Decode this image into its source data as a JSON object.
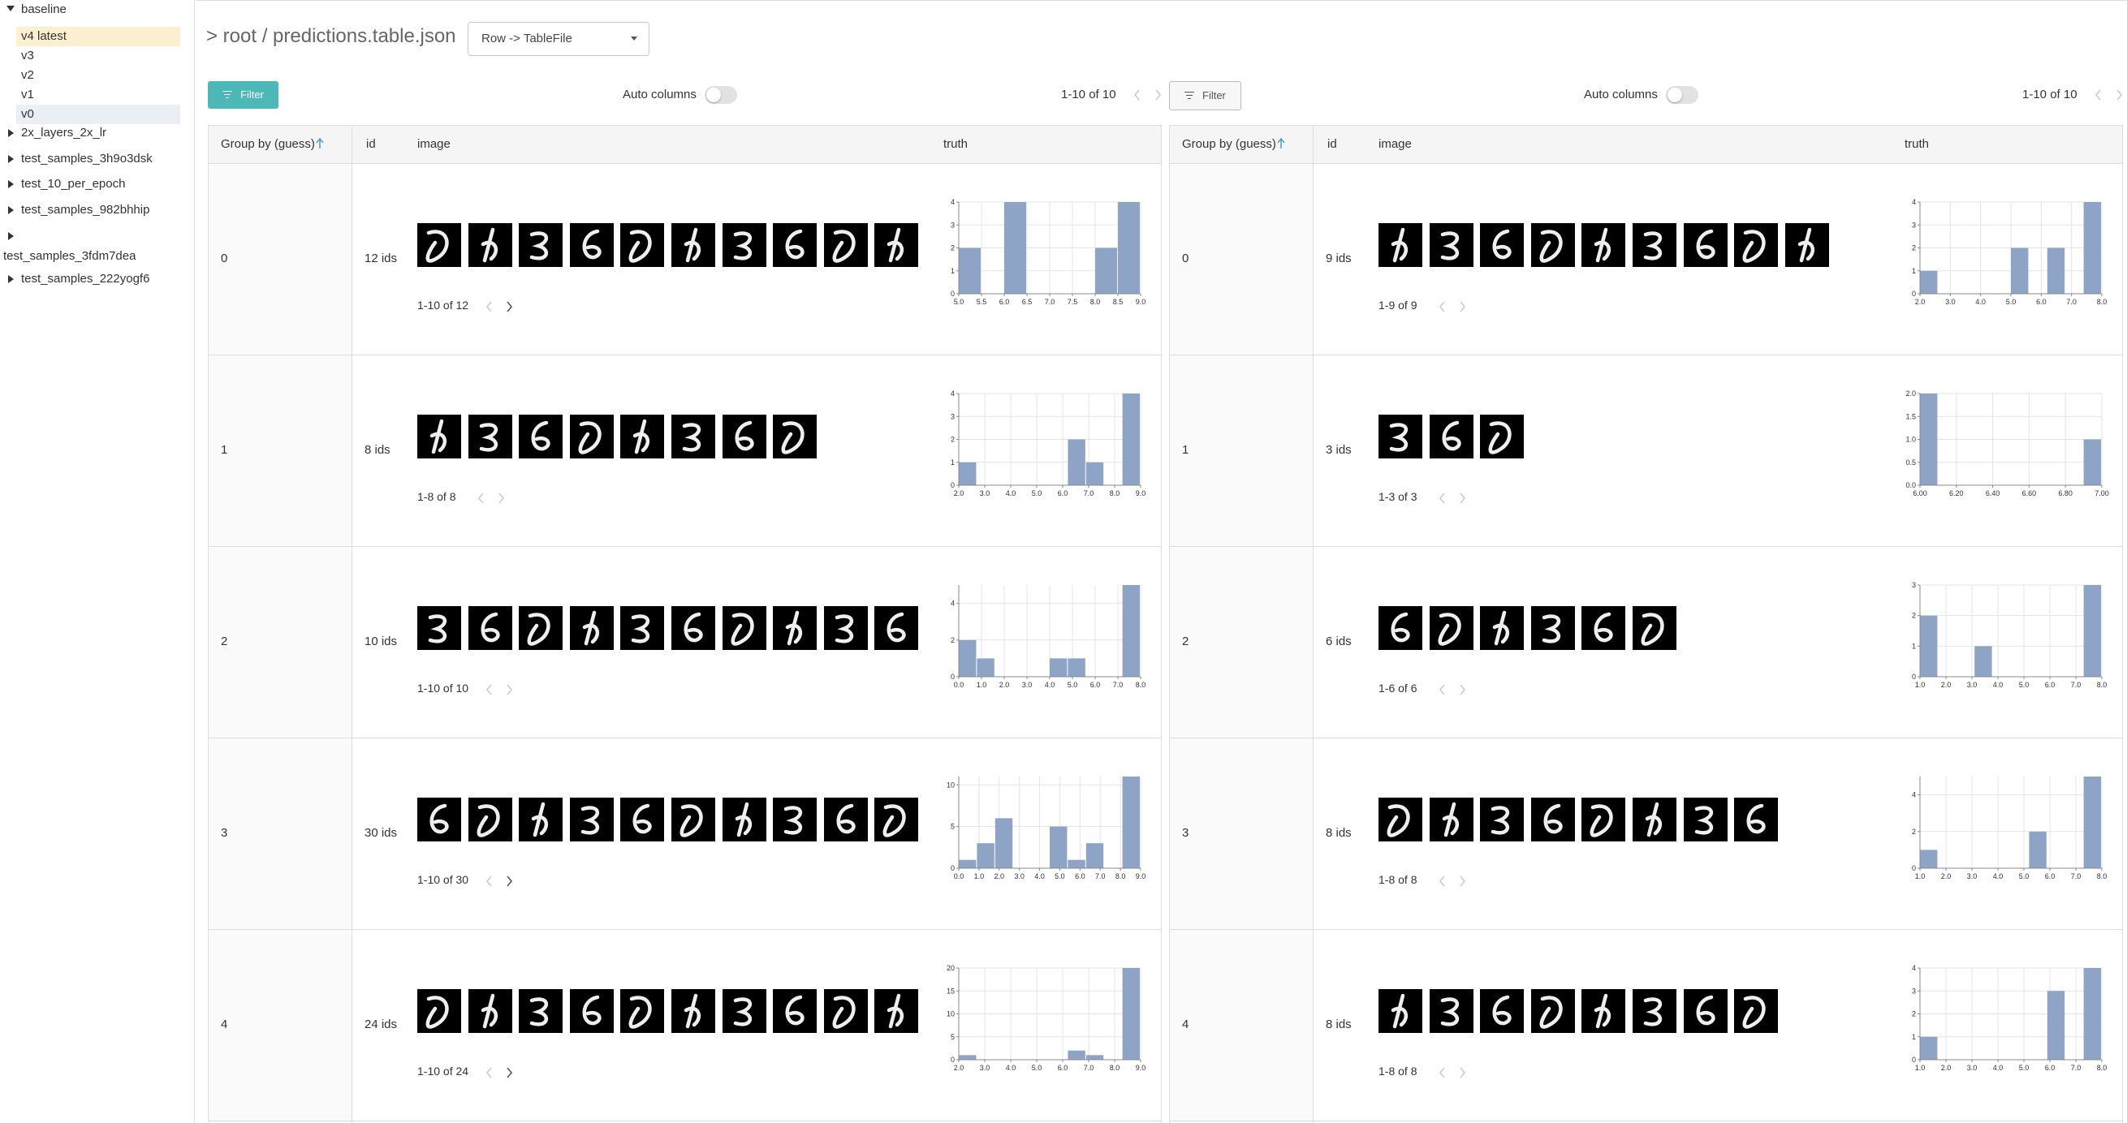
{
  "sidebar": {
    "items": [
      {
        "label": "baseline",
        "children": [
          "v4 latest",
          "v3",
          "v2",
          "v1",
          "v0"
        ]
      },
      {
        "label": "2x_layers_2x_lr"
      },
      {
        "label": "test_samples_3h9o3dsk"
      },
      {
        "label": "test_10_per_epoch"
      },
      {
        "label": "test_samples_982bhhip"
      },
      {
        "label": "test_samples_3fdm7dea"
      },
      {
        "label": "test_samples_222yogf6"
      }
    ]
  },
  "header": {
    "path": "> root / predictions.table.json",
    "select": "Row -> TableFile"
  },
  "panels": [
    {
      "filter": "Filter",
      "auto_columns": "Auto columns",
      "pagination": "1-10 of 10",
      "columns": [
        "Group by (guess)",
        "id",
        "image",
        "truth"
      ],
      "rows": [
        {
          "group": "0",
          "ids": "12 ids",
          "thumbnails": 10,
          "pager": "1-10 of 12",
          "truth": {
            "type": "histogram",
            "color": "#8ea4c6",
            "bins": [
              5,
              5.5,
              6,
              6.5,
              7,
              7.5,
              8,
              8.5,
              9
            ],
            "values": [
              2,
              0,
              4,
              0,
              0,
              0,
              2,
              4
            ],
            "xlim": [
              5,
              9
            ],
            "ylim": [
              0,
              4
            ],
            "xticks": [
              {
                "value": 5,
                "label": "5.0"
              },
              5.5,
              {
                "value": 6,
                "label": "6.0"
              },
              6.5,
              {
                "value": 7,
                "label": "7.0"
              },
              7.5,
              {
                "value": 8,
                "label": "8.0"
              },
              8.5,
              {
                "value": 9,
                "label": "9.0"
              }
            ],
            "yticks": [
              0,
              1,
              2,
              3,
              4
            ]
          }
        },
        {
          "group": "1",
          "ids": "8 ids",
          "thumbnails": 8,
          "pager": "1-8 of 8",
          "truth": {
            "type": "histogram",
            "color": "#8ea4c6",
            "bins": [
              2,
              2.7,
              3.4,
              4.1,
              4.8,
              5.5,
              6.2,
              6.9,
              7.6,
              8.3,
              9
            ],
            "values": [
              1,
              0,
              0,
              0,
              0,
              0,
              2,
              1,
              0,
              4
            ],
            "xlim": [
              2,
              9
            ],
            "ylim": [
              0,
              4
            ],
            "xticks": [
              {
                "value": 2,
                "label": "2.0"
              },
              {
                "value": 3,
                "label": "3.0"
              },
              {
                "value": 4,
                "label": "4.0"
              },
              {
                "value": 5,
                "label": "5.0"
              },
              {
                "value": 6,
                "label": "6.0"
              },
              {
                "value": 7,
                "label": "7.0"
              },
              {
                "value": 8,
                "label": "8.0"
              },
              {
                "value": 9,
                "label": "9.0"
              }
            ],
            "yticks": [
              0,
              1,
              2,
              3,
              4
            ]
          }
        },
        {
          "group": "2",
          "ids": "10 ids",
          "thumbnails": 10,
          "pager": "1-10 of 10",
          "truth": {
            "type": "histogram",
            "color": "#8ea4c6",
            "bins": [
              0,
              0.8,
              1.6,
              2.4,
              3.2,
              4,
              4.8,
              5.6,
              6.4,
              7.2,
              8
            ],
            "values": [
              2,
              1,
              0,
              0,
              0,
              1,
              1,
              0,
              0,
              5
            ],
            "xlim": [
              0,
              8
            ],
            "ylim": [
              0,
              5
            ],
            "xticks": [
              {
                "value": 0,
                "label": "0.0"
              },
              {
                "value": 1,
                "label": "1.0"
              },
              {
                "value": 2,
                "label": "2.0"
              },
              {
                "value": 3,
                "label": "3.0"
              },
              {
                "value": 4,
                "label": "4.0"
              },
              {
                "value": 5,
                "label": "5.0"
              },
              {
                "value": 6,
                "label": "6.0"
              },
              {
                "value": 7,
                "label": "7.0"
              },
              {
                "value": 8,
                "label": "8.0"
              }
            ],
            "yticks": [
              0,
              2,
              4
            ]
          }
        },
        {
          "group": "3",
          "ids": "30 ids",
          "thumbnails": 10,
          "pager": "1-10 of 30",
          "truth": {
            "type": "histogram",
            "color": "#8ea4c6",
            "bins": [
              0,
              0.9,
              1.8,
              2.7,
              3.6,
              4.5,
              5.4,
              6.3,
              7.2,
              8.1,
              9
            ],
            "values": [
              1,
              3,
              6,
              0,
              0,
              5,
              1,
              3,
              0,
              11
            ],
            "xlim": [
              0,
              9
            ],
            "ylim": [
              0,
              11
            ],
            "xticks": [
              {
                "value": 0,
                "label": "0.0"
              },
              {
                "value": 1,
                "label": "1.0"
              },
              {
                "value": 2,
                "label": "2.0"
              },
              {
                "value": 3,
                "label": "3.0"
              },
              {
                "value": 4,
                "label": "4.0"
              },
              {
                "value": 5,
                "label": "5.0"
              },
              {
                "value": 6,
                "label": "6.0"
              },
              {
                "value": 7,
                "label": "7.0"
              },
              {
                "value": 8,
                "label": "8.0"
              },
              {
                "value": 9,
                "label": "9.0"
              }
            ],
            "yticks": [
              0,
              5,
              10
            ]
          }
        },
        {
          "group": "4",
          "ids": "24 ids",
          "thumbnails": 10,
          "pager": "1-10 of 24",
          "truth": {
            "type": "histogram",
            "color": "#8ea4c6",
            "bins": [
              2,
              2.7,
              3.4,
              4.1,
              4.8,
              5.5,
              6.2,
              6.9,
              7.6,
              8.3,
              9
            ],
            "values": [
              1,
              0,
              0,
              0,
              0,
              0,
              2,
              1,
              0,
              20
            ],
            "xlim": [
              2,
              9
            ],
            "ylim": [
              0,
              20
            ],
            "xticks": [
              {
                "value": 2,
                "label": "2.0"
              },
              {
                "value": 3,
                "label": "3.0"
              },
              {
                "value": 4,
                "label": "4.0"
              },
              {
                "value": 5,
                "label": "5.0"
              },
              {
                "value": 6,
                "label": "6.0"
              },
              {
                "value": 7,
                "label": "7.0"
              },
              {
                "value": 8,
                "label": "8.0"
              },
              {
                "value": 9,
                "label": "9.0"
              }
            ],
            "yticks": [
              0,
              5,
              10,
              15,
              20
            ]
          }
        }
      ]
    },
    {
      "filter": "Filter",
      "auto_columns": "Auto columns",
      "pagination": "1-10 of 10",
      "columns": [
        "Group by (guess)",
        "id",
        "image",
        "truth"
      ],
      "rows": [
        {
          "group": "0",
          "ids": "9 ids",
          "thumbnails": 9,
          "pager": "1-9 of 9",
          "truth": {
            "type": "histogram",
            "color": "#8ea4c6",
            "bins": [
              2,
              2.6,
              3.2,
              3.8,
              4.4,
              5,
              5.6,
              6.2,
              6.8,
              7.4,
              8
            ],
            "values": [
              1,
              0,
              0,
              0,
              0,
              2,
              0,
              2,
              0,
              4
            ],
            "xlim": [
              2,
              8
            ],
            "ylim": [
              0,
              4
            ],
            "xticks": [
              {
                "value": 2,
                "label": "2.0"
              },
              {
                "value": 3,
                "label": "3.0"
              },
              {
                "value": 4,
                "label": "4.0"
              },
              {
                "value": 5,
                "label": "5.0"
              },
              {
                "value": 6,
                "label": "6.0"
              },
              {
                "value": 7,
                "label": "7.0"
              },
              {
                "value": 8,
                "label": "8.0"
              }
            ],
            "yticks": [
              0,
              1,
              2,
              3,
              4
            ]
          }
        },
        {
          "group": "1",
          "ids": "3 ids",
          "thumbnails": 3,
          "pager": "1-3 of 3",
          "truth": {
            "type": "histogram",
            "color": "#8ea4c6",
            "bins": [
              6,
              6.1,
              6.2,
              6.3,
              6.4,
              6.5,
              6.6,
              6.7,
              6.8,
              6.9,
              7
            ],
            "values": [
              2,
              0,
              0,
              0,
              0,
              0,
              0,
              0,
              0,
              1
            ],
            "xlim": [
              6,
              7
            ],
            "ylim": [
              0,
              2
            ],
            "xticks": [
              {
                "value": 6,
                "label": "6.00"
              },
              {
                "value": 6.2,
                "label": "6.20"
              },
              {
                "value": 6.4,
                "label": "6.40"
              },
              {
                "value": 6.6,
                "label": "6.60"
              },
              {
                "value": 6.8,
                "label": "6.80"
              },
              {
                "value": 7,
                "label": "7.00"
              }
            ],
            "yticks": [
              {
                "value": 0,
                "label": "0.0"
              },
              0.5,
              {
                "value": 1,
                "label": "1.0"
              },
              1.5,
              {
                "value": 2,
                "label": "2.0"
              }
            ]
          }
        },
        {
          "group": "2",
          "ids": "6 ids",
          "thumbnails": 6,
          "pager": "1-6 of 6",
          "truth": {
            "type": "histogram",
            "color": "#8ea4c6",
            "bins": [
              1,
              1.7,
              2.4,
              3.1,
              3.8,
              4.5,
              5.2,
              5.9,
              6.6,
              7.3,
              8
            ],
            "values": [
              2,
              0,
              0,
              1,
              0,
              0,
              0,
              0,
              0,
              3
            ],
            "xlim": [
              1,
              8
            ],
            "ylim": [
              0,
              3
            ],
            "xticks": [
              {
                "value": 1,
                "label": "1.0"
              },
              {
                "value": 2,
                "label": "2.0"
              },
              {
                "value": 3,
                "label": "3.0"
              },
              {
                "value": 4,
                "label": "4.0"
              },
              {
                "value": 5,
                "label": "5.0"
              },
              {
                "value": 6,
                "label": "6.0"
              },
              {
                "value": 7,
                "label": "7.0"
              },
              {
                "value": 8,
                "label": "8.0"
              }
            ],
            "yticks": [
              0,
              1,
              2,
              3
            ]
          }
        },
        {
          "group": "3",
          "ids": "8 ids",
          "thumbnails": 8,
          "pager": "1-8 of 8",
          "truth": {
            "type": "histogram",
            "color": "#8ea4c6",
            "bins": [
              1,
              1.7,
              2.4,
              3.1,
              3.8,
              4.5,
              5.2,
              5.9,
              6.6,
              7.3,
              8
            ],
            "values": [
              1,
              0,
              0,
              0,
              0,
              0,
              2,
              0,
              0,
              5
            ],
            "xlim": [
              1,
              8
            ],
            "ylim": [
              0,
              5
            ],
            "xticks": [
              {
                "value": 1,
                "label": "1.0"
              },
              {
                "value": 2,
                "label": "2.0"
              },
              {
                "value": 3,
                "label": "3.0"
              },
              {
                "value": 4,
                "label": "4.0"
              },
              {
                "value": 5,
                "label": "5.0"
              },
              {
                "value": 6,
                "label": "6.0"
              },
              {
                "value": 7,
                "label": "7.0"
              },
              {
                "value": 8,
                "label": "8.0"
              }
            ],
            "yticks": [
              0,
              2,
              4
            ]
          }
        },
        {
          "group": "4",
          "ids": "8 ids",
          "thumbnails": 8,
          "pager": "1-8 of 8",
          "truth": {
            "type": "histogram",
            "color": "#8ea4c6",
            "bins": [
              1,
              1.7,
              2.4,
              3.1,
              3.8,
              4.5,
              5.2,
              5.9,
              6.6,
              7.3,
              8
            ],
            "values": [
              1,
              0,
              0,
              0,
              0,
              0,
              0,
              3,
              0,
              4
            ],
            "xlim": [
              1,
              8
            ],
            "ylim": [
              0,
              4
            ],
            "xticks": [
              {
                "value": 1,
                "label": "1.0"
              },
              {
                "value": 2,
                "label": "2.0"
              },
              {
                "value": 3,
                "label": "3.0"
              },
              {
                "value": 4,
                "label": "4.0"
              },
              {
                "value": 5,
                "label": "5.0"
              },
              {
                "value": 6,
                "label": "6.0"
              },
              {
                "value": 7,
                "label": "7.0"
              },
              {
                "value": 8,
                "label": "8.0"
              }
            ],
            "yticks": [
              0,
              1,
              2,
              3,
              4
            ]
          }
        }
      ]
    }
  ]
}
